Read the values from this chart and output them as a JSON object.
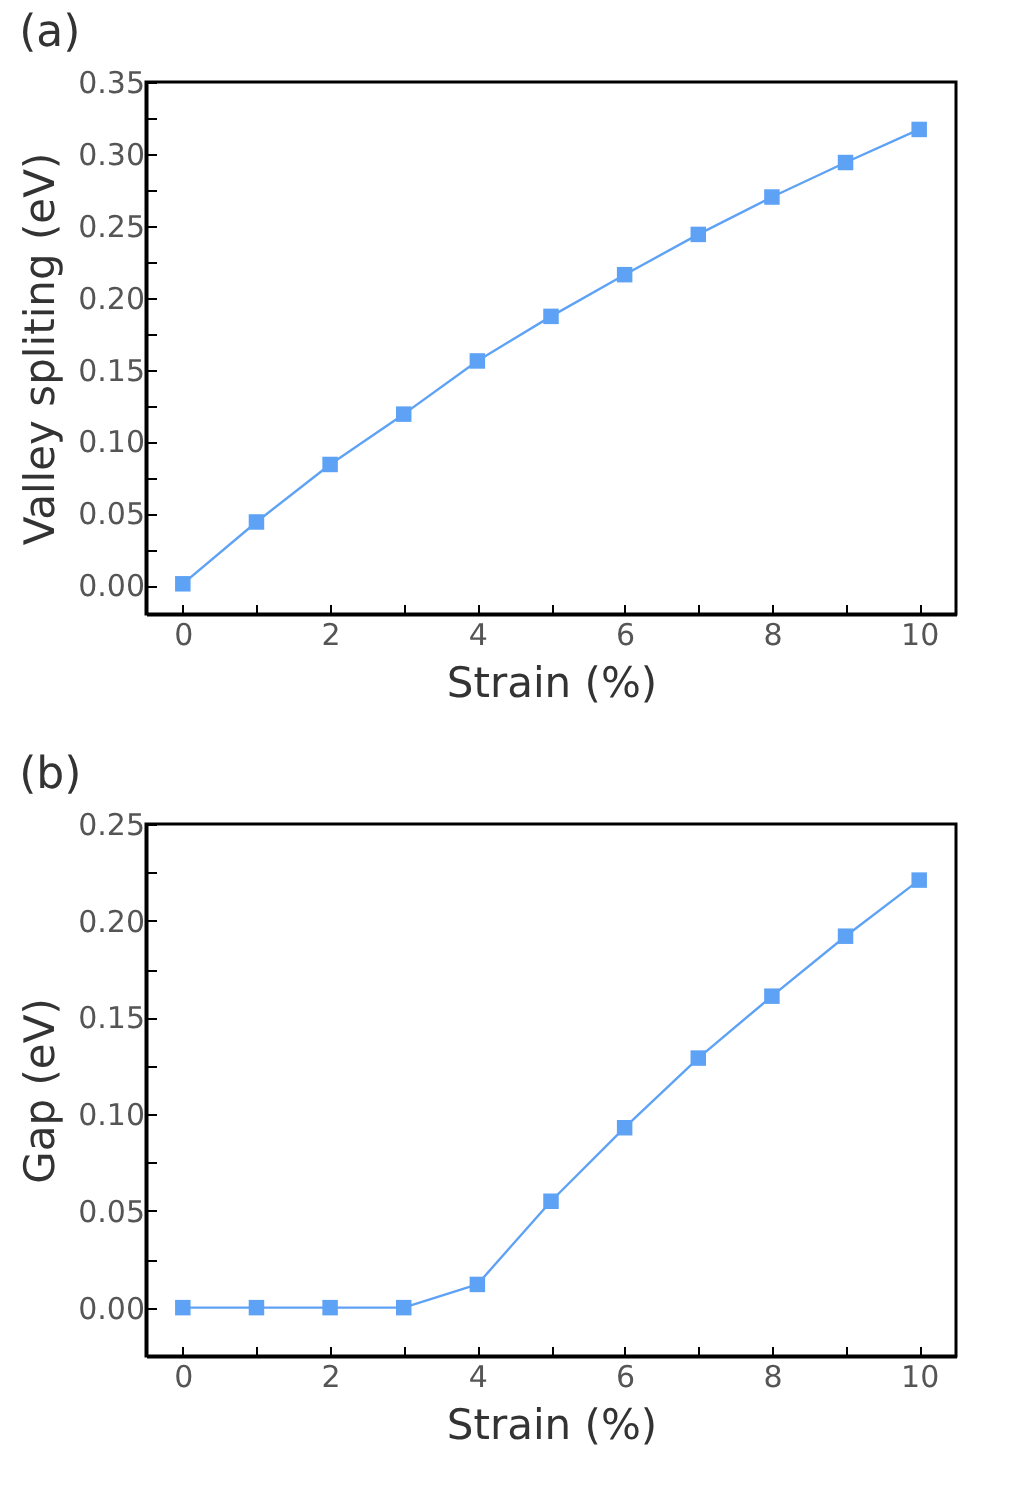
{
  "chart_data": [
    {
      "type": "line",
      "title": "(a)",
      "xlabel": "Strain (%)",
      "ylabel": "Valley spliting (eV)",
      "x": [
        0,
        1,
        2,
        3,
        4,
        5,
        6,
        7,
        8,
        9,
        10
      ],
      "series": [
        {
          "color": "#5ea2f5",
          "values": [
            0.001,
            0.044,
            0.084,
            0.119,
            0.156,
            0.187,
            0.216,
            0.244,
            0.27,
            0.294,
            0.317
          ]
        }
      ],
      "xlim": [
        -0.5,
        10.5
      ],
      "ylim": [
        -0.02,
        0.35
      ],
      "xticks": [
        0,
        {
          "value": 1,
          "label": null
        },
        2,
        {
          "value": 3,
          "label": null
        },
        4,
        {
          "value": 5,
          "label": null
        },
        6,
        {
          "value": 7,
          "label": null
        },
        8,
        {
          "value": 9,
          "label": null
        },
        10
      ],
      "yticks": [
        {
          "value": 0,
          "label": "0.00"
        },
        {
          "value": 0.025,
          "label": null
        },
        0.05,
        {
          "value": 0.075,
          "label": null
        },
        {
          "value": 0.1,
          "label": "0.10"
        },
        {
          "value": 0.125,
          "label": null
        },
        0.15,
        {
          "value": 0.175,
          "label": null
        },
        {
          "value": 0.2,
          "label": "0.20"
        },
        {
          "value": 0.225,
          "label": null
        },
        0.25,
        {
          "value": 0.275,
          "label": null
        },
        {
          "value": 0.3,
          "label": "0.30"
        },
        {
          "value": 0.325,
          "label": null
        },
        0.35
      ],
      "marker": "square",
      "line_style": "solid",
      "grid": false
    },
    {
      "type": "line",
      "title": "(b)",
      "xlabel": "Strain (%)",
      "ylabel": "Gap (eV)",
      "x": [
        0,
        1,
        2,
        3,
        4,
        5,
        6,
        7,
        8,
        9,
        10
      ],
      "series": [
        {
          "color": "#5ea2f5",
          "values": [
            0,
            0,
            0,
            0,
            0.012,
            0.055,
            0.093,
            0.129,
            0.161,
            0.192,
            0.221
          ]
        }
      ],
      "xlim": [
        -0.5,
        10.5
      ],
      "ylim": [
        -0.025,
        0.25
      ],
      "xticks": [
        0,
        {
          "value": 1,
          "label": null
        },
        2,
        {
          "value": 3,
          "label": null
        },
        4,
        {
          "value": 5,
          "label": null
        },
        6,
        {
          "value": 7,
          "label": null
        },
        8,
        {
          "value": 9,
          "label": null
        },
        10
      ],
      "yticks": [
        {
          "value": 0,
          "label": "0.00"
        },
        {
          "value": 0.025,
          "label": null
        },
        0.05,
        {
          "value": 0.075,
          "label": null
        },
        {
          "value": 0.1,
          "label": "0.10"
        },
        {
          "value": 0.125,
          "label": null
        },
        0.15,
        {
          "value": 0.175,
          "label": null
        },
        {
          "value": 0.2,
          "label": "0.20"
        },
        {
          "value": 0.225,
          "label": null
        },
        0.25
      ],
      "marker": "square",
      "line_style": "solid",
      "grid": false
    }
  ]
}
